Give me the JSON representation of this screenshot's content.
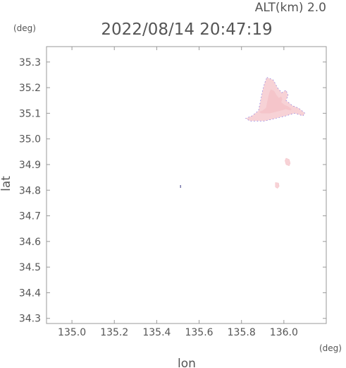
{
  "chart_data": {
    "type": "heatmap",
    "title": "2022/08/14 20:47:19",
    "subtitle": "ALT(km) 2.0",
    "xlabel": "lon",
    "ylabel": "lat",
    "x_unit": "(deg)",
    "y_unit": "(deg)",
    "xlim": [
      134.88,
      136.2
    ],
    "ylim": [
      34.28,
      35.36
    ],
    "x_ticks": [
      135.0,
      135.2,
      135.4,
      135.6,
      135.8,
      136.0
    ],
    "x_tick_labels": [
      "135.0",
      "135.2",
      "135.4",
      "135.6",
      "135.8",
      "136.0"
    ],
    "y_ticks": [
      34.3,
      34.4,
      34.5,
      34.6,
      34.7,
      34.8,
      34.9,
      35.0,
      35.1,
      35.2,
      35.3
    ],
    "y_tick_labels": [
      "34.3",
      "34.4",
      "34.5",
      "34.6",
      "34.7",
      "34.8",
      "34.9",
      "35.0",
      "35.1",
      "35.2",
      "35.3"
    ],
    "grid": false,
    "colors": {
      "fill": "#f7d2d6",
      "core": "#f2b6bd",
      "edge": "#6655dd",
      "speck": "#7777aa"
    },
    "regions": [
      {
        "name": "echo-main",
        "points": [
          [
            135.92,
            35.24
          ],
          [
            135.95,
            35.23
          ],
          [
            135.97,
            35.2
          ],
          [
            135.99,
            35.18
          ],
          [
            136.01,
            35.19
          ],
          [
            136.02,
            35.17
          ],
          [
            136.01,
            35.15
          ],
          [
            136.04,
            35.13
          ],
          [
            136.07,
            35.12
          ],
          [
            136.1,
            35.1
          ],
          [
            136.09,
            35.09
          ],
          [
            136.05,
            35.1
          ],
          [
            136.01,
            35.09
          ],
          [
            135.96,
            35.08
          ],
          [
            135.91,
            35.07
          ],
          [
            135.87,
            35.07
          ],
          [
            135.84,
            35.07
          ],
          [
            135.82,
            35.08
          ],
          [
            135.85,
            35.09
          ],
          [
            135.88,
            35.11
          ],
          [
            135.89,
            35.15
          ],
          [
            135.9,
            35.19
          ],
          [
            135.91,
            35.22
          ]
        ]
      },
      {
        "name": "echo-small-1",
        "points": [
          [
            136.01,
            34.925
          ],
          [
            136.025,
            34.92
          ],
          [
            136.03,
            34.905
          ],
          [
            136.025,
            34.895
          ],
          [
            136.01,
            34.9
          ],
          [
            136.005,
            34.915
          ]
        ]
      },
      {
        "name": "echo-small-2",
        "points": [
          [
            135.96,
            34.83
          ],
          [
            135.975,
            34.828
          ],
          [
            135.978,
            34.815
          ],
          [
            135.97,
            34.807
          ],
          [
            135.96,
            34.812
          ]
        ]
      }
    ],
    "specks": [
      {
        "lon": 135.51,
        "lat": 34.82
      }
    ]
  }
}
